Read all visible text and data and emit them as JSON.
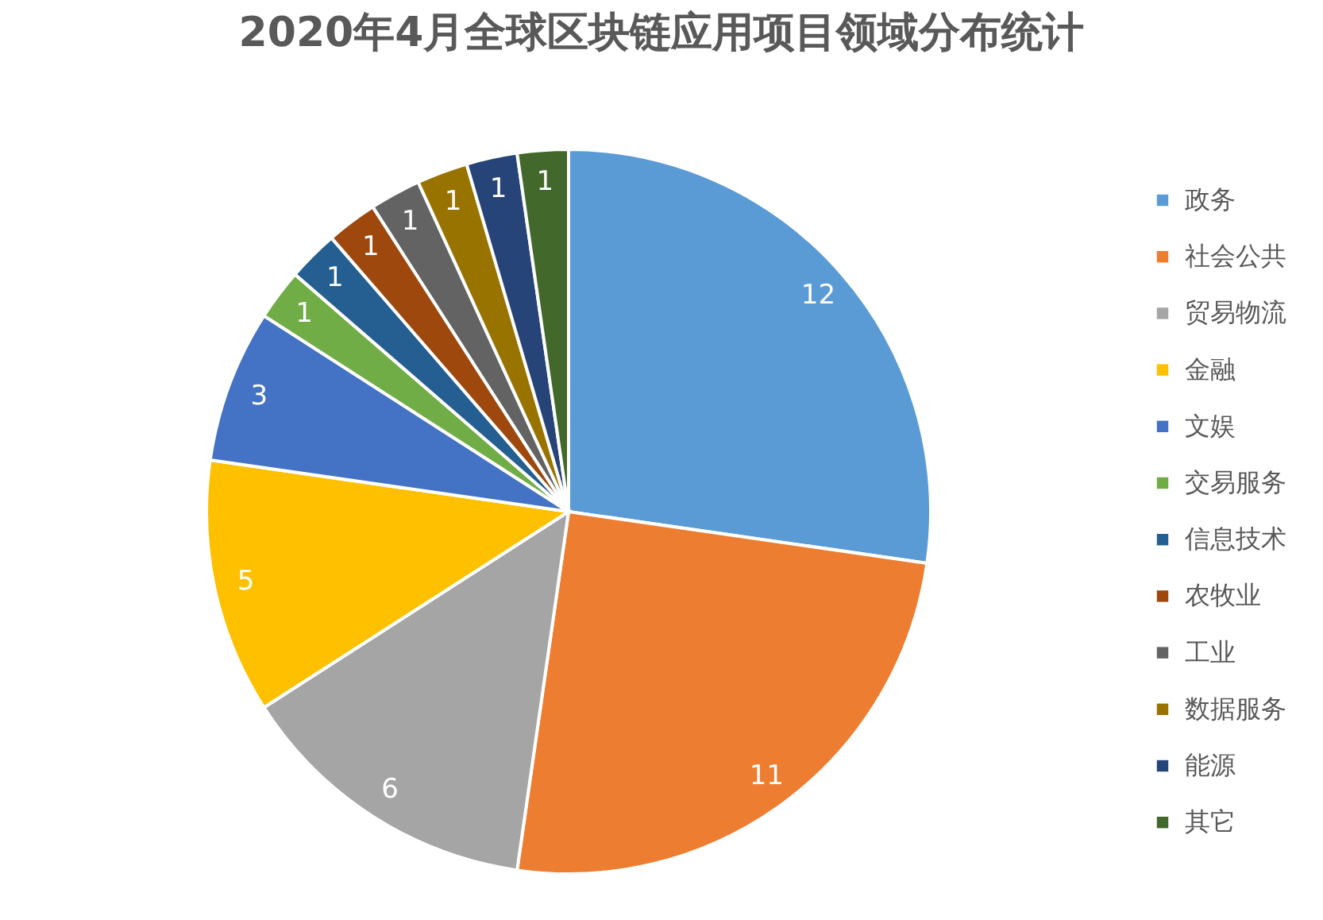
{
  "chart_data": {
    "type": "pie",
    "title": "2020年4月全球区块链应用项目领域分布统计",
    "categories": [
      "政务",
      "社会公共",
      "贸易物流",
      "金融",
      "文娱",
      "交易服务",
      "信息技术",
      "农牧业",
      "工业",
      "数据服务",
      "能源",
      "其它"
    ],
    "values": [
      12,
      11,
      6,
      5,
      3,
      1,
      1,
      1,
      1,
      1,
      1,
      1
    ],
    "colors": [
      "#5b9bd5",
      "#ed7d31",
      "#a5a5a5",
      "#ffc000",
      "#4472c4",
      "#70ad47",
      "#255e91",
      "#9e480e",
      "#636363",
      "#997300",
      "#264478",
      "#43682b"
    ],
    "data_labels": true,
    "legend": "right"
  }
}
